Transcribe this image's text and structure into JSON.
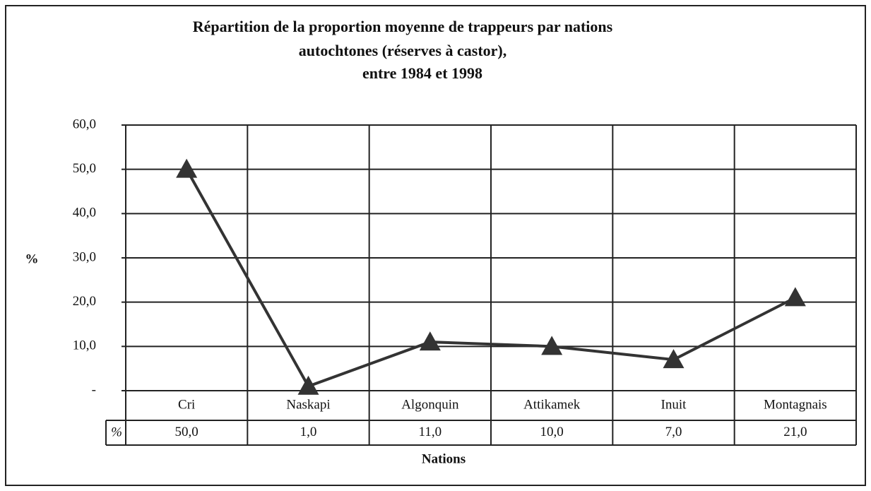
{
  "chart_data": {
    "type": "line",
    "title": [
      "Répartition de la proportion moyenne de trappeurs par nations",
      "autochtones (réserves à castor),",
      "entre 1984 et 1998"
    ],
    "ylabel": "%",
    "xlabel": "Nations",
    "table_row_label": "%",
    "categories": [
      "Cri",
      "Naskapi",
      "Algonquin",
      "Attikamek",
      "Inuit",
      "Montagnais"
    ],
    "values": [
      50,
      1,
      11,
      10,
      7,
      21
    ],
    "value_labels": [
      "50,0",
      "1,0",
      "11,0",
      "10,0",
      "7,0",
      "21,0"
    ],
    "color": "#333333",
    "ylim": [
      0,
      60
    ],
    "yticks": [
      {
        "value": 0,
        "label": "-"
      },
      {
        "value": 10,
        "label": "10,0"
      },
      {
        "value": 20,
        "label": "20,0"
      },
      {
        "value": 30,
        "label": "30,0"
      },
      {
        "value": 40,
        "label": "40,0"
      },
      {
        "value": 50,
        "label": "50,0"
      },
      {
        "value": 60,
        "label": "60,0"
      }
    ],
    "grid": true
  }
}
